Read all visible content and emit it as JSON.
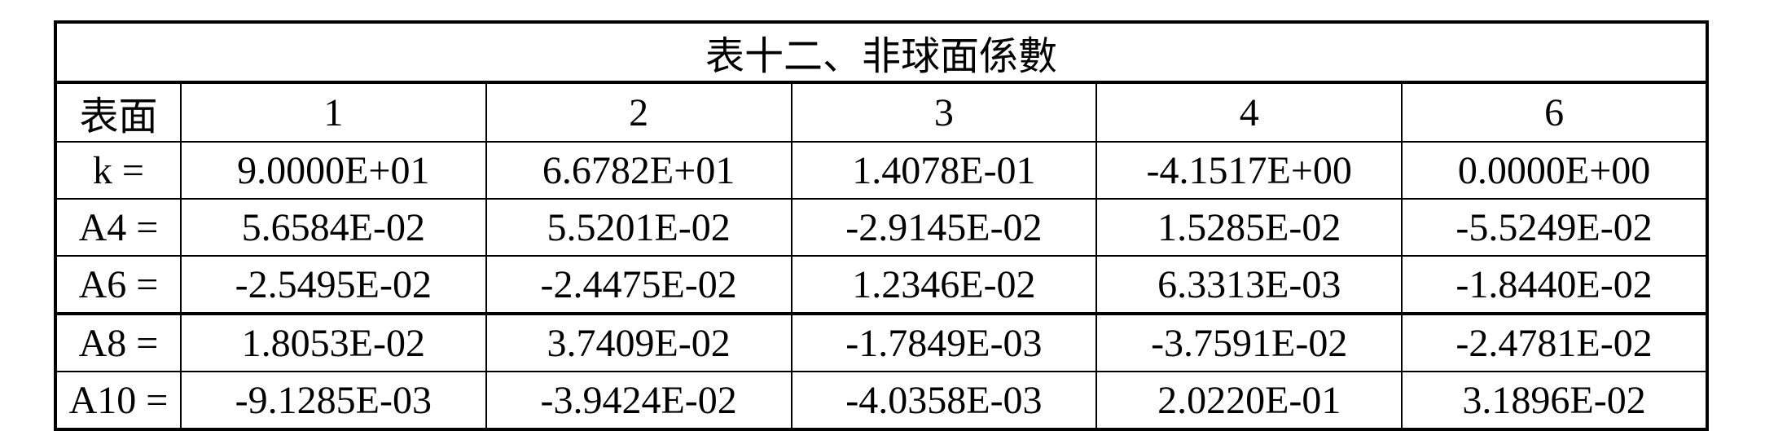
{
  "table": {
    "title": "表十二、非球面係數",
    "header": [
      "表面",
      "1",
      "2",
      "3",
      "4",
      "6"
    ],
    "rows": [
      {
        "label": "k =",
        "values": [
          "9.0000E+01",
          "6.6782E+01",
          "1.4078E-01",
          "-4.1517E+00",
          "0.0000E+00"
        ]
      },
      {
        "label": "A4 =",
        "values": [
          "5.6584E-02",
          "5.5201E-02",
          "-2.9145E-02",
          "1.5285E-02",
          "-5.5249E-02"
        ]
      },
      {
        "label": "A6 =",
        "values": [
          "-2.5495E-02",
          "-2.4475E-02",
          "1.2346E-02",
          "6.3313E-03",
          "-1.8440E-02"
        ]
      },
      {
        "label": "A8 =",
        "values": [
          "1.8053E-02",
          "3.7409E-02",
          "-1.7849E-03",
          "-3.7591E-02",
          "-2.4781E-02"
        ]
      },
      {
        "label": "A10 =",
        "values": [
          "-9.1285E-03",
          "-3.9424E-02",
          "-4.0358E-03",
          "2.0220E-01",
          "3.1896E-02"
        ]
      }
    ]
  }
}
